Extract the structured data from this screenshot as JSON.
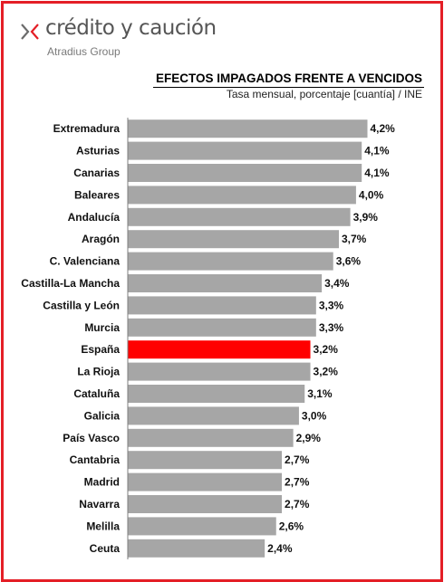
{
  "brand": {
    "name": "crédito y caución",
    "group": "Atradius Group"
  },
  "colors": {
    "frame": "#e41e26",
    "bar": "#a6a6a6",
    "highlight": "#ff0000",
    "logo_mark": "#e41e26"
  },
  "chart_data": {
    "type": "bar",
    "orientation": "horizontal",
    "title": "EFECTOS IMPAGADOS FRENTE A VENCIDOS",
    "subtitle": "Tasa mensual,  porcentaje [cuantía]  / INE",
    "categories": [
      "Extremadura",
      "Asturias",
      "Canarias",
      "Baleares",
      "Andalucía",
      "Aragón",
      "C. Valenciana",
      "Castilla-La Mancha",
      "Castilla y León",
      "Murcia",
      "España",
      "La Rioja",
      "Cataluña",
      "Galicia",
      "País Vasco",
      "Cantabria",
      "Madrid",
      "Navarra",
      "Melilla",
      "Ceuta"
    ],
    "values": [
      4.2,
      4.1,
      4.1,
      4.0,
      3.9,
      3.7,
      3.6,
      3.4,
      3.3,
      3.3,
      3.2,
      3.2,
      3.1,
      3.0,
      2.9,
      2.7,
      2.7,
      2.7,
      2.6,
      2.4
    ],
    "data_labels": [
      "4,2%",
      "4,1%",
      "4,1%",
      "4,0%",
      "3,9%",
      "3,7%",
      "3,6%",
      "3,4%",
      "3,3%",
      "3,3%",
      "3,2%",
      "3,2%",
      "3,1%",
      "3,0%",
      "2,9%",
      "2,7%",
      "2,7%",
      "2,7%",
      "2,6%",
      "2,4%"
    ],
    "highlight": "España",
    "xlim": [
      0,
      4.7
    ],
    "grid": false,
    "legend": "none"
  }
}
